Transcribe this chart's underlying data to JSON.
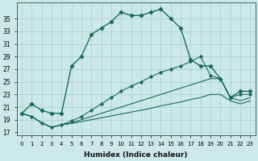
{
  "xlabel": "Humidex (Indice chaleur)",
  "ylabel": "",
  "bg_color": "#cce8e8",
  "grid_color": "#aacccc",
  "line_color": "#1a6b5a",
  "x": [
    0,
    1,
    2,
    3,
    4,
    5,
    6,
    7,
    8,
    9,
    10,
    11,
    12,
    13,
    14,
    15,
    16,
    17,
    18,
    19,
    20,
    21,
    22,
    23
  ],
  "main_line": [
    20.0,
    21.5,
    20.5,
    20.0,
    20.0,
    27.5,
    29.0,
    32.5,
    33.5,
    34.5,
    36.0,
    35.5,
    35.5,
    36.0,
    36.5,
    35.0,
    33.5,
    28.5,
    27.5,
    27.5,
    25.5,
    22.5,
    23.5,
    23.5
  ],
  "line2": [
    20.0,
    19.5,
    18.5,
    17.8,
    18.2,
    18.8,
    19.5,
    20.5,
    21.5,
    22.5,
    23.5,
    24.3,
    25.0,
    25.8,
    26.5,
    27.0,
    27.5,
    28.2,
    29.0,
    26.0,
    25.5,
    22.5,
    23.0,
    23.0
  ],
  "line3": [
    20.0,
    19.5,
    18.5,
    17.8,
    18.2,
    18.5,
    19.0,
    19.5,
    20.0,
    20.5,
    21.0,
    21.5,
    22.0,
    22.5,
    23.0,
    23.5,
    24.0,
    24.5,
    25.0,
    25.5,
    25.5,
    22.5,
    22.0,
    22.5
  ],
  "line4": [
    20.0,
    19.5,
    18.5,
    17.8,
    18.2,
    18.4,
    18.7,
    19.0,
    19.3,
    19.6,
    19.9,
    20.2,
    20.5,
    20.8,
    21.2,
    21.5,
    21.8,
    22.2,
    22.5,
    23.0,
    23.0,
    22.0,
    21.5,
    22.0
  ],
  "yticks": [
    17,
    19,
    21,
    23,
    25,
    27,
    29,
    31,
    33,
    35
  ],
  "ylim": [
    16.5,
    37.5
  ],
  "xlim": [
    -0.5,
    23.5
  ],
  "xtick_fontsize": 5.0,
  "ytick_fontsize": 5.5,
  "xlabel_fontsize": 6.5
}
